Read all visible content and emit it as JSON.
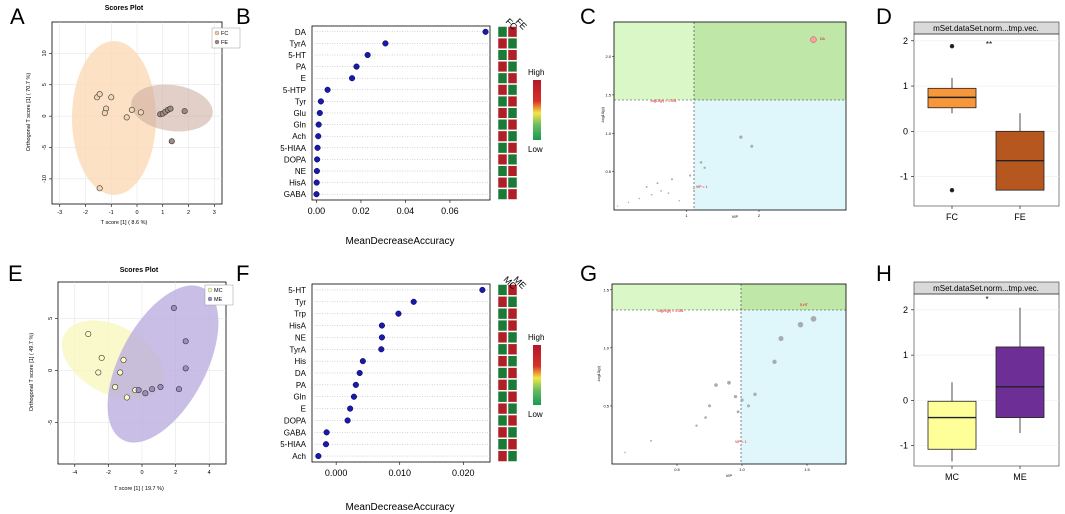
{
  "panel_letters": [
    "A",
    "B",
    "C",
    "D",
    "E",
    "F",
    "G",
    "H"
  ],
  "scores_plot": {
    "title": "Scores Plot",
    "top": {
      "ylabel": "Orthogonal T score [1] ( 70.7 %)",
      "xlabel": "T score [1] ( 8.6 %)",
      "xticks": [
        -3,
        -2,
        -1,
        0,
        1,
        2,
        3
      ],
      "yticks": [
        10,
        5,
        0,
        -5,
        -10
      ],
      "legend": [
        {
          "label": "FC",
          "color": "#f5c9a0"
        },
        {
          "label": "FE",
          "color": "#a2877d"
        }
      ]
    },
    "bottom": {
      "ylabel": "Orthogonal T score [1] ( 49.7 %)",
      "xlabel": "T score [1] ( 19.7 %)",
      "xticks": [
        -4,
        -2,
        0,
        2,
        4
      ],
      "yticks": [
        5,
        0,
        -5
      ],
      "legend": [
        {
          "label": "MC",
          "color": "#fafab4"
        },
        {
          "label": "ME",
          "color": "#9b8ec4"
        }
      ]
    }
  },
  "vip_panels": {
    "xlabel": "MeanDecreaseAccuracy",
    "legend_high": "High",
    "legend_low": "Low",
    "top": {
      "groups": [
        "FC",
        "FE"
      ],
      "metabolites": [
        "DA",
        "TyrA",
        "5-HT",
        "PA",
        "E",
        "5-HTP",
        "Tyr",
        "Glu",
        "Gln",
        "Ach",
        "5-HIAA",
        "DOPA",
        "NE",
        "HisA",
        "GABA"
      ],
      "xticks": [
        "0.00",
        "0.02",
        "0.04",
        "0.06"
      ]
    },
    "bottom": {
      "groups": [
        "MC",
        "ME"
      ],
      "metabolites": [
        "5-HT",
        "Tyr",
        "Trp",
        "HisA",
        "NE",
        "TyrA",
        "His",
        "DA",
        "PA",
        "Gln",
        "E",
        "DOPA",
        "GABA",
        "5-HIAA",
        "Ach"
      ],
      "xticks": [
        "0.000",
        "0.010",
        "0.020"
      ]
    }
  },
  "volcano": {
    "ylabel": "-log10(p)",
    "xlabel": "VIP",
    "top": {
      "hline_label": "-log10(p) = 1.301",
      "vline_label": "VIP = 1",
      "point_label": "DA",
      "yticks": [
        "2.0",
        "1.5",
        "1.0",
        "0.5"
      ],
      "xticks": [
        "1",
        "2"
      ]
    },
    "bottom": {
      "hline_label": "-log10(p) = 1.301",
      "vline_label": "VIP = 1",
      "point_label": "5-HT",
      "yticks": [
        "1.5",
        "1.0",
        "0.5"
      ],
      "xticks": [
        "0.5",
        "1.0",
        "1.5"
      ]
    }
  },
  "boxplot": {
    "header": "mSet.dataSet.norm...tmp.vec.",
    "top": {
      "categories": [
        "FC",
        "FE"
      ],
      "yticks": [
        "2",
        "1",
        "0",
        "-1"
      ],
      "sig": "**"
    },
    "bottom": {
      "categories": [
        "MC",
        "ME"
      ],
      "yticks": [
        "2",
        "1",
        "0",
        "-1"
      ],
      "sig": "*"
    }
  },
  "chart_data": [
    {
      "type": "scatter",
      "panel": "A",
      "title": "Scores Plot",
      "xlabel": "T score [1] ( 8.6 %)",
      "ylabel": "Orthogonal T score [1] ( 70.7 %)",
      "xlim": [
        -3.3,
        3.3
      ],
      "ylim": [
        -14,
        15
      ],
      "series": [
        {
          "name": "FC",
          "x": [
            -1.55,
            -1.45,
            -1.2,
            -1.25,
            -1.0,
            -0.4,
            -0.2,
            0.15,
            -1.45
          ],
          "y": [
            3.0,
            3.5,
            1.2,
            0.5,
            3.0,
            -0.2,
            1.0,
            0.6,
            -11.5
          ]
        },
        {
          "name": "FE",
          "x": [
            0.9,
            1.0,
            1.1,
            1.2,
            1.3,
            1.85,
            1.35
          ],
          "y": [
            0.3,
            0.4,
            0.7,
            1.0,
            1.2,
            0.8,
            -4.0
          ]
        }
      ]
    },
    {
      "type": "dot",
      "panel": "B",
      "xlabel": "MeanDecreaseAccuracy",
      "categories": [
        "DA",
        "TyrA",
        "5-HT",
        "PA",
        "E",
        "5-HTP",
        "Tyr",
        "Glu",
        "Gln",
        "Ach",
        "5-HIAA",
        "DOPA",
        "NE",
        "HisA",
        "GABA"
      ],
      "values": [
        0.076,
        0.031,
        0.023,
        0.018,
        0.016,
        0.005,
        0.002,
        0.0015,
        0.001,
        0.0008,
        0.0005,
        0.0003,
        0.0002,
        0.0001,
        0.0
      ],
      "xlim": [
        -0.002,
        0.078
      ],
      "heatmap": {
        "FC": [
          "low",
          "high",
          "low",
          "high",
          "low",
          "high",
          "low",
          "high",
          "low",
          "high",
          "low",
          "high",
          "low",
          "high",
          "low"
        ],
        "FE": [
          "high",
          "low",
          "high",
          "low",
          "high",
          "low",
          "high",
          "low",
          "high",
          "low",
          "high",
          "low",
          "high",
          "low",
          "high"
        ]
      }
    },
    {
      "type": "scatter",
      "panel": "C",
      "xlabel": "VIP",
      "ylabel": "-log10(p)",
      "xlim": [
        0,
        3.2
      ],
      "ylim": [
        0,
        2.45
      ],
      "thresholds": {
        "vip": 1,
        "p": 1.301
      },
      "x": [
        0.05,
        0.2,
        0.35,
        0.45,
        0.52,
        0.6,
        0.65,
        0.75,
        0.8,
        0.9,
        1.05,
        1.1,
        1.2,
        1.25,
        1.75,
        1.9,
        2.75
      ],
      "y": [
        0.05,
        0.1,
        0.15,
        0.3,
        0.2,
        0.35,
        0.25,
        0.22,
        0.4,
        0.12,
        0.45,
        0.28,
        0.62,
        0.55,
        0.95,
        0.83,
        2.22
      ]
    },
    {
      "type": "box",
      "panel": "D",
      "header": "mSet.dataSet.norm...tmp.vec.",
      "categories": [
        "FC",
        "FE"
      ],
      "ylim": [
        -1.65,
        2.15
      ],
      "boxes": [
        {
          "name": "FC",
          "min": 0.4,
          "q1": 0.52,
          "median": 0.75,
          "q3": 0.95,
          "max": 1.18,
          "outliers": [
            1.88,
            -1.3
          ],
          "color": "#f5973a"
        },
        {
          "name": "FE",
          "min": -1.3,
          "q1": -1.3,
          "median": -0.65,
          "q3": 0.0,
          "max": 0.4,
          "outliers": [],
          "color": "#b5571f"
        }
      ]
    },
    {
      "type": "scatter",
      "panel": "E",
      "title": "Scores Plot",
      "xlabel": "T score [1] ( 19.7 %)",
      "ylabel": "Orthogonal T score [1] ( 49.7 %)",
      "xlim": [
        -5,
        5
      ],
      "ylim": [
        -9,
        8.5
      ],
      "series": [
        {
          "name": "MC",
          "x": [
            -3.2,
            -2.4,
            -2.6,
            -1.6,
            -1.1,
            -1.3,
            -0.9,
            -0.4
          ],
          "y": [
            3.5,
            1.2,
            -0.2,
            -1.6,
            1.0,
            -0.2,
            -2.6,
            -1.9
          ],
          "color": "#fafab4"
        },
        {
          "name": "ME",
          "x": [
            -0.2,
            0.2,
            0.6,
            1.1,
            1.9,
            2.2,
            2.6,
            2.6
          ],
          "y": [
            -1.9,
            -2.2,
            -1.8,
            -1.6,
            6.0,
            -1.8,
            2.8,
            0.2
          ],
          "color": "#9b8ec4"
        }
      ]
    },
    {
      "type": "dot",
      "panel": "F",
      "xlabel": "MeanDecreaseAccuracy",
      "categories": [
        "5-HT",
        "Tyr",
        "Trp",
        "HisA",
        "NE",
        "TyrA",
        "His",
        "DA",
        "PA",
        "Gln",
        "E",
        "DOPA",
        "GABA",
        "5-HIAA",
        "Ach"
      ],
      "values": [
        0.023,
        0.0122,
        0.0098,
        0.0072,
        0.0072,
        0.0071,
        0.0042,
        0.0037,
        0.0031,
        0.0028,
        0.0022,
        0.0018,
        -0.0015,
        -0.0016,
        -0.0028
      ],
      "xlim": [
        -0.0038,
        0.0242
      ],
      "heatmap": {
        "MC": [
          "low",
          "high",
          "low",
          "low",
          "high",
          "low",
          "high",
          "low",
          "high",
          "low",
          "high",
          "low",
          "high",
          "low",
          "high"
        ],
        "ME": [
          "high",
          "low",
          "high",
          "high",
          "low",
          "high",
          "low",
          "high",
          "low",
          "high",
          "low",
          "high",
          "low",
          "high",
          "low"
        ]
      }
    },
    {
      "type": "scatter",
      "panel": "G",
      "xlabel": "VIP",
      "ylabel": "-log10(p)",
      "xlim": [
        0,
        1.8
      ],
      "ylim": [
        0,
        1.55
      ],
      "thresholds": {
        "vip": 1,
        "p": 1.301
      },
      "x": [
        0.1,
        0.3,
        0.65,
        0.72,
        0.75,
        0.8,
        0.9,
        0.95,
        0.97,
        1.0,
        1.05,
        1.1,
        1.25,
        1.3,
        1.45,
        1.55
      ],
      "y": [
        0.1,
        0.2,
        0.33,
        0.4,
        0.5,
        0.68,
        0.7,
        0.58,
        0.45,
        0.55,
        0.5,
        0.6,
        0.88,
        1.08,
        1.2,
        1.25
      ]
    },
    {
      "type": "box",
      "panel": "H",
      "header": "mSet.dataSet.norm...tmp.vec.",
      "categories": [
        "MC",
        "ME"
      ],
      "ylim": [
        -1.45,
        2.35
      ],
      "boxes": [
        {
          "name": "MC",
          "min": -1.35,
          "q1": -1.08,
          "median": -0.38,
          "q3": -0.02,
          "max": 0.4,
          "outliers": [],
          "color": "#ffff99"
        },
        {
          "name": "ME",
          "min": -0.72,
          "q1": -0.38,
          "median": 0.3,
          "q3": 1.18,
          "max": 2.05,
          "outliers": [],
          "color": "#6d2f96"
        }
      ]
    }
  ]
}
